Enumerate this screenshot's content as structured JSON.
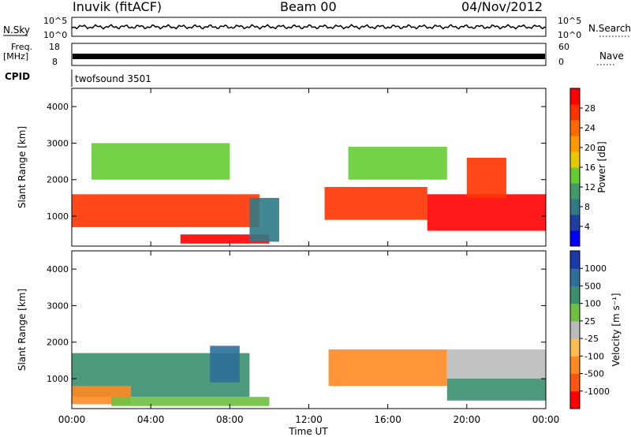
{
  "header": {
    "radar": "Inuvik (fitACF)",
    "beam": "Beam 00",
    "date": "04/Nov/2012"
  },
  "noise_panel": {
    "left_label": "N.Sky",
    "right_label": "N.Search",
    "y_ticks": [
      "10^5",
      "10^0"
    ]
  },
  "freq_panel": {
    "left_label_line1": "Freq.",
    "left_label_line2": "[MHz]",
    "left_ticks": [
      "18",
      "8"
    ],
    "right_label": "Nave",
    "right_ticks": [
      "60",
      "0"
    ]
  },
  "cpid_panel": {
    "label": "CPID",
    "program": "twofsound 3501"
  },
  "power_panel": {
    "ylabel": "Slant Range [km]",
    "y_ticks": [
      "4000",
      "3000",
      "2000",
      "1000"
    ],
    "colorbar_label": "Power [dB]",
    "colorbar_ticks": [
      "28",
      "24",
      "20",
      "16",
      "12",
      "8",
      "4"
    ],
    "colors": [
      "#0000ff",
      "#1e3fa0",
      "#2f7a86",
      "#3f9a66",
      "#66cc33",
      "#e6c800",
      "#ff9900",
      "#ff6a00",
      "#ff3300",
      "#ff0000"
    ]
  },
  "velocity_panel": {
    "ylabel": "Slant Range [km]",
    "y_ticks": [
      "4000",
      "3000",
      "2000",
      "1000"
    ],
    "colorbar_label": "Velocity [m s⁻¹]",
    "colorbar_ticks": [
      "1000",
      "500",
      "100",
      "25",
      "-25",
      "-100",
      "-500",
      "-1000"
    ],
    "colors": [
      "#1a3aa8",
      "#2e6f9a",
      "#3a8f6e",
      "#6fc040",
      "#bbbbbb",
      "#ffbb55",
      "#ff8822",
      "#ff5511",
      "#ff0000"
    ]
  },
  "x_axis": {
    "ticks": [
      "00:00",
      "04:00",
      "08:00",
      "12:00",
      "16:00",
      "20:00",
      "00:00"
    ],
    "label": "Time UT"
  },
  "chart_data": {
    "type": "heatmap",
    "x_range_hours": [
      0,
      24
    ],
    "y_range_km": [
      180,
      4500
    ],
    "power_scale_db": [
      0,
      30
    ],
    "velocity_scale_ms": [
      -1000,
      1000
    ],
    "power_regions": [
      {
        "t0": 0,
        "t1": 9.5,
        "r0": 700,
        "r1": 1600,
        "db": 26
      },
      {
        "t0": 5.5,
        "t1": 10,
        "r0": 250,
        "r1": 500,
        "db": 28
      },
      {
        "t0": 9,
        "t1": 10.5,
        "r0": 300,
        "r1": 1500,
        "db": 8
      },
      {
        "t0": 12.8,
        "t1": 18,
        "r0": 900,
        "r1": 1800,
        "db": 25
      },
      {
        "t0": 18,
        "t1": 24,
        "r0": 600,
        "r1": 1600,
        "db": 27
      },
      {
        "t0": 20,
        "t1": 22,
        "r0": 1500,
        "r1": 2600,
        "db": 24
      },
      {
        "t0": 1,
        "t1": 8,
        "r0": 2000,
        "r1": 3000,
        "db": 12
      },
      {
        "t0": 14,
        "t1": 19,
        "r0": 2000,
        "r1": 2900,
        "db": 14
      }
    ],
    "velocity_regions": [
      {
        "t0": 0,
        "t1": 9,
        "r0": 500,
        "r1": 1700,
        "v": 200
      },
      {
        "t0": 0,
        "t1": 3,
        "r0": 300,
        "r1": 800,
        "v": -400
      },
      {
        "t0": 2,
        "t1": 10,
        "r0": 250,
        "r1": 500,
        "v": 50
      },
      {
        "t0": 7,
        "t1": 8.5,
        "r0": 900,
        "r1": 1900,
        "v": 800
      },
      {
        "t0": 13,
        "t1": 19,
        "r0": 800,
        "r1": 1800,
        "v": -350
      },
      {
        "t0": 19,
        "t1": 24,
        "r0": 1000,
        "r1": 1800,
        "v": 0
      },
      {
        "t0": 19,
        "t1": 24,
        "r0": 400,
        "r1": 1000,
        "v": 150
      }
    ]
  }
}
